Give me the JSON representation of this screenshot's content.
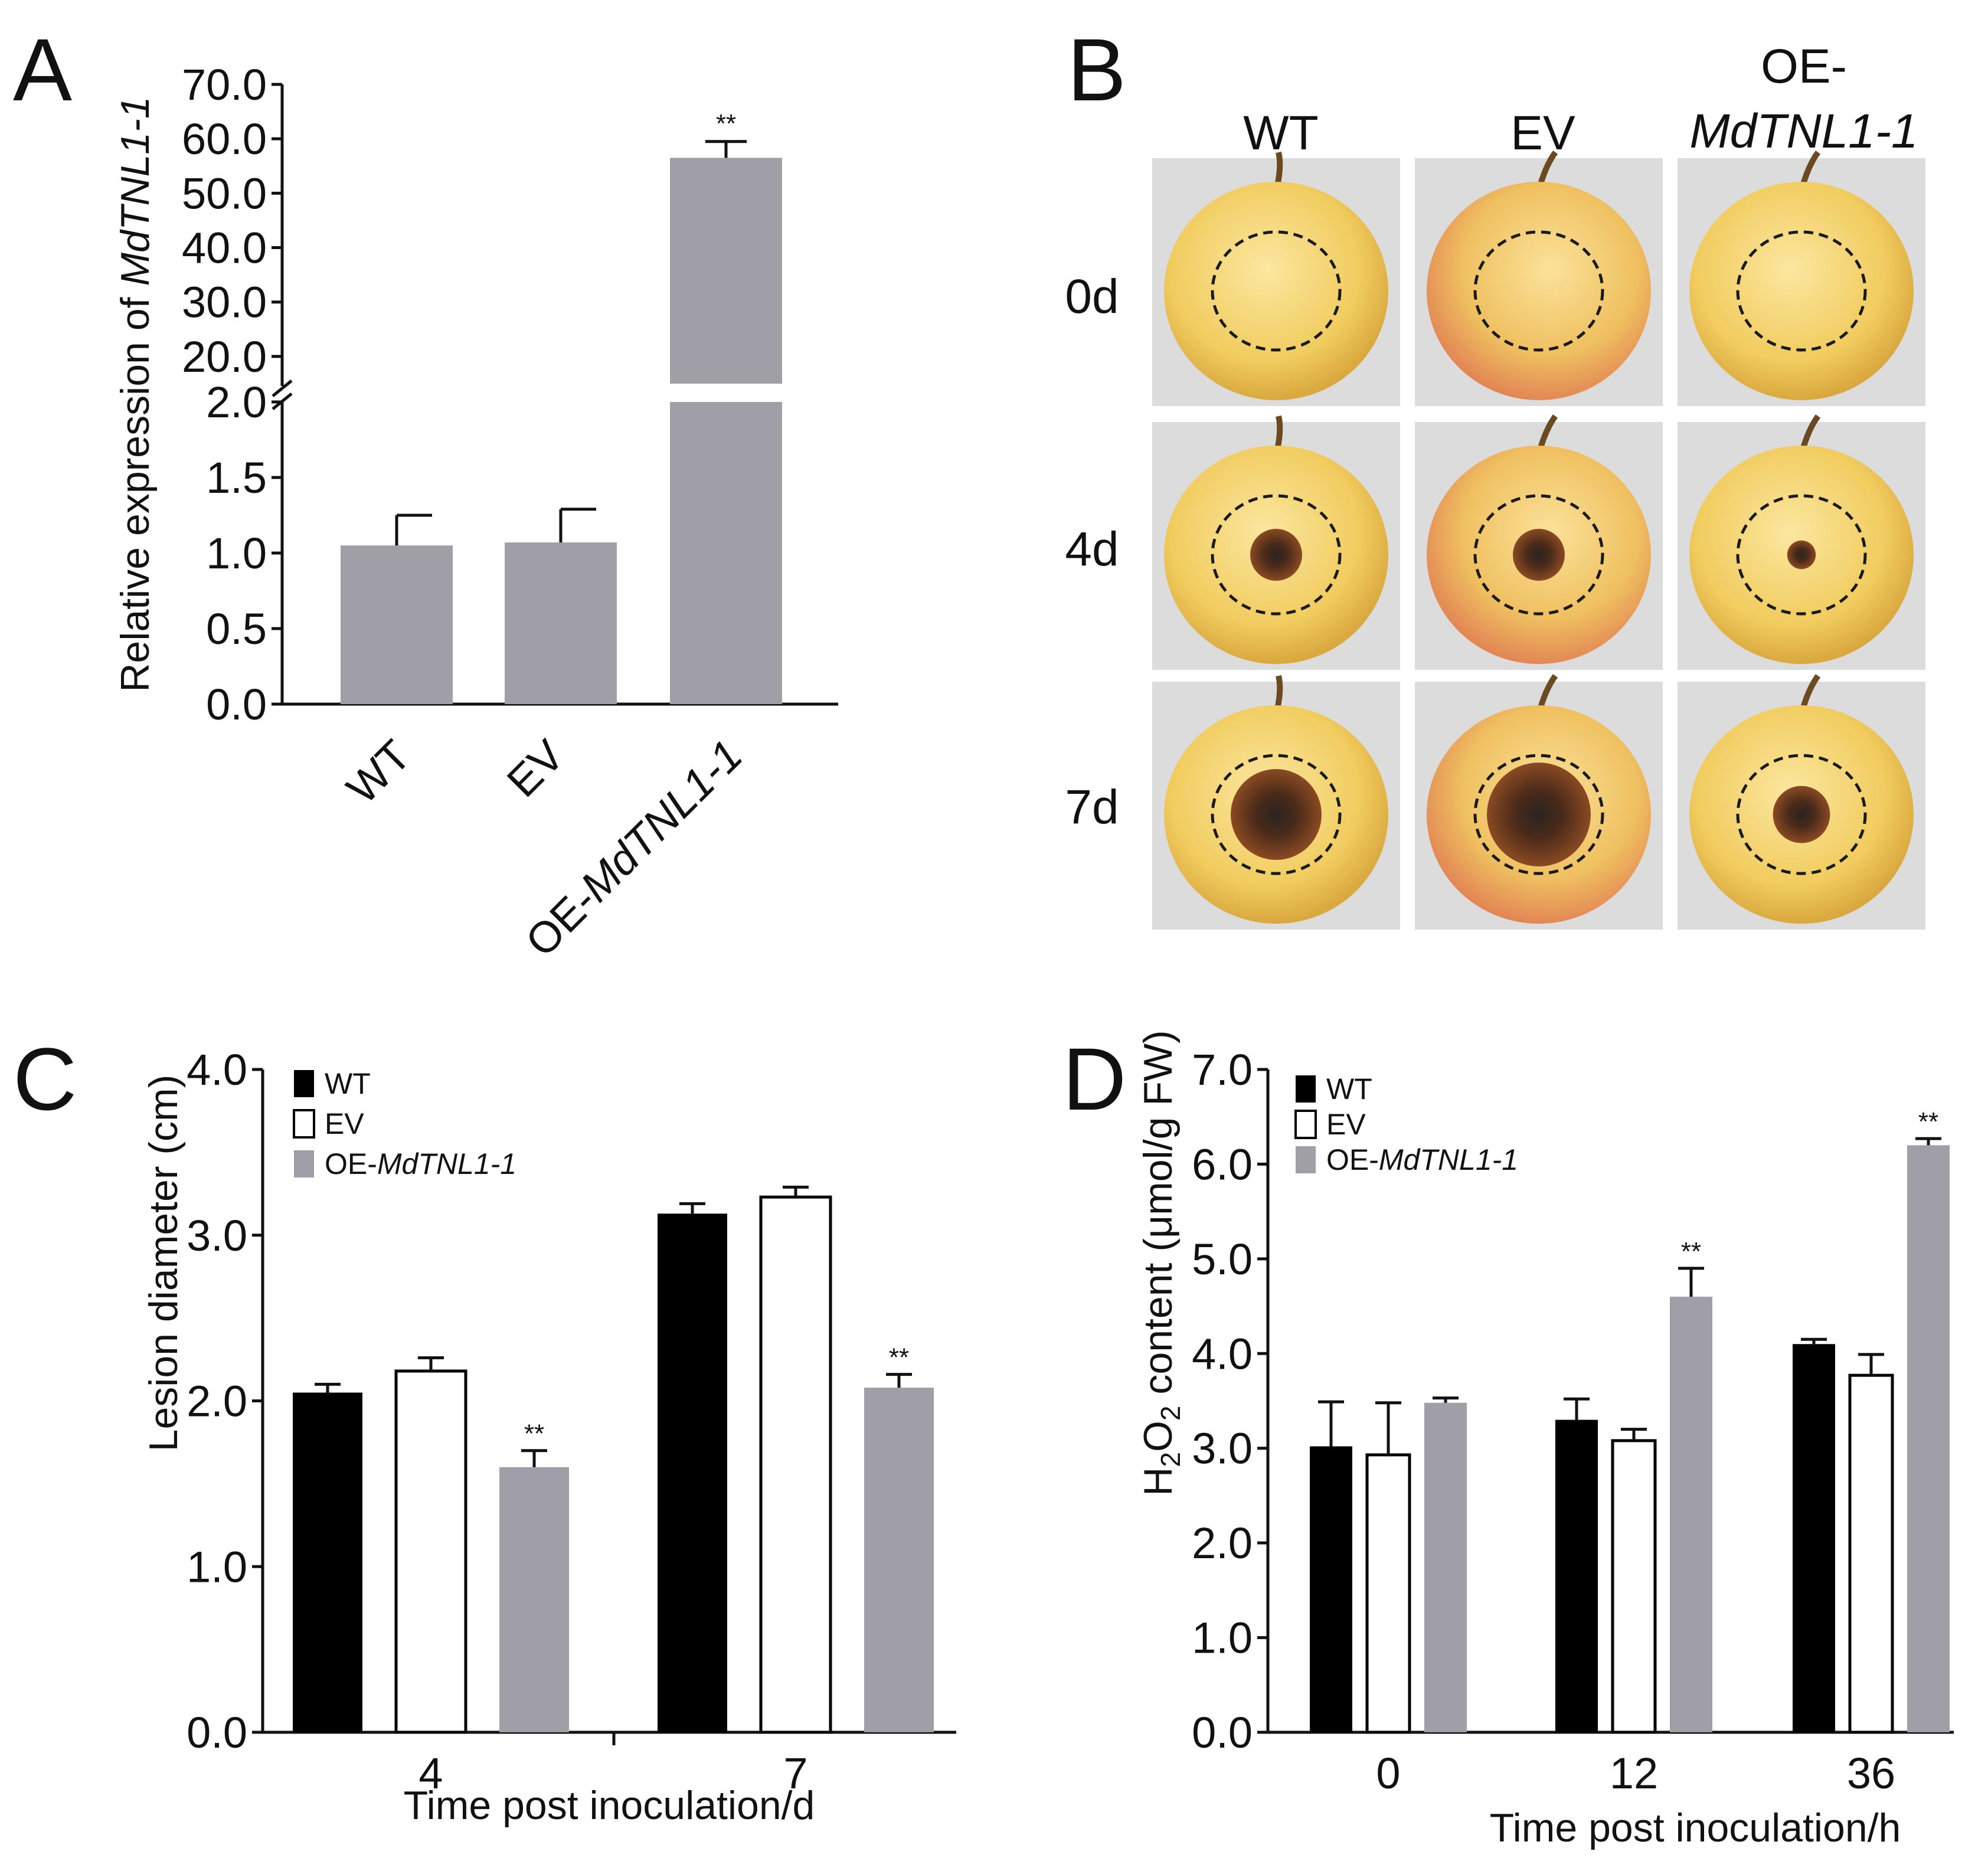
{
  "panel_labels": [
    "A",
    "B",
    "C",
    "D"
  ],
  "colors": {
    "wt": "#000000",
    "ev": "#ffffff",
    "oe": "#a09ea6",
    "axis": "#111111",
    "apple": "#f2cf67",
    "lesion": "#6e3a1e"
  },
  "chart_data": [
    {
      "id": "A",
      "type": "bar",
      "title": "",
      "xlabel": "",
      "ylabel_prefix": "Relative expression of ",
      "ylabel_gene": "MdTNL1-1",
      "categories": [
        "WT",
        "EV",
        "OE-MdTNL1-1"
      ],
      "category_labels": [
        {
          "prefix": "WT",
          "gene": ""
        },
        {
          "prefix": "EV",
          "gene": ""
        },
        {
          "prefix": "OE-",
          "gene": "MdTNL1-1"
        }
      ],
      "values": [
        1.05,
        1.07,
        56.5
      ],
      "errors": [
        0.2,
        0.22,
        3.0
      ],
      "significance": [
        "",
        "",
        "**"
      ],
      "axis_break": true,
      "ylim_lower": [
        0.0,
        2.0
      ],
      "ylim_upper": [
        15.0,
        70.0
      ],
      "yticks_lower": [
        "0.0",
        "0.5",
        "1.0",
        "1.5",
        "2.0"
      ],
      "yticks_upper": [
        "20.0",
        "30.0",
        "40.0",
        "50.0",
        "60.0",
        "70.0"
      ]
    },
    {
      "id": "C",
      "type": "bar",
      "title": "",
      "xlabel": "Time post inoculation/d",
      "ylabel": "Lesion diameter  (cm)",
      "categories": [
        "4",
        "7"
      ],
      "series": [
        {
          "name": "WT",
          "values": [
            2.05,
            3.13
          ],
          "errors": [
            0.05,
            0.06
          ],
          "significance": [
            "",
            ""
          ]
        },
        {
          "name": "EV",
          "values": [
            2.18,
            3.23
          ],
          "errors": [
            0.08,
            0.06
          ],
          "significance": [
            "",
            ""
          ]
        },
        {
          "name": "OE-MdTNL1-1",
          "values": [
            1.6,
            2.08
          ],
          "errors": [
            0.1,
            0.08
          ],
          "significance": [
            "**",
            "**"
          ]
        }
      ],
      "ylim": [
        0.0,
        4.0
      ],
      "yticks": [
        "0.0",
        "1.0",
        "2.0",
        "3.0",
        "4.0"
      ],
      "legend_labels": [
        {
          "prefix": "WT",
          "gene": ""
        },
        {
          "prefix": "EV",
          "gene": ""
        },
        {
          "prefix": "OE-",
          "gene": "MdTNL1-1"
        }
      ],
      "legend_position": "top-left"
    },
    {
      "id": "D",
      "type": "bar",
      "title": "",
      "xlabel": "Time post inoculation/h",
      "ylabel": "H2O2 content (μmol/g FW)",
      "ylabel_parts": [
        "H",
        "2",
        "O",
        "2",
        " content (μmol/g FW)"
      ],
      "categories": [
        "0",
        "12",
        "36"
      ],
      "series": [
        {
          "name": "WT",
          "values": [
            3.02,
            3.3,
            4.1
          ],
          "errors": [
            0.47,
            0.22,
            0.05
          ],
          "significance": [
            "",
            "",
            ""
          ]
        },
        {
          "name": "EV",
          "values": [
            2.93,
            3.08,
            3.77
          ],
          "errors": [
            0.55,
            0.12,
            0.22
          ],
          "significance": [
            "",
            "",
            ""
          ]
        },
        {
          "name": "OE-MdTNL1-1",
          "values": [
            3.48,
            4.6,
            6.2
          ],
          "errors": [
            0.05,
            0.3,
            0.07
          ],
          "significance": [
            "",
            "**",
            "**"
          ]
        }
      ],
      "ylim": [
        0.0,
        7.0
      ],
      "yticks": [
        "0.0",
        "1.0",
        "2.0",
        "3.0",
        "4.0",
        "5.0",
        "6.0",
        "7.0"
      ],
      "legend_labels": [
        {
          "prefix": "WT",
          "gene": ""
        },
        {
          "prefix": "EV",
          "gene": ""
        },
        {
          "prefix": "OE-",
          "gene": "MdTNL1-1"
        }
      ],
      "legend_position": "top-left"
    }
  ],
  "photo_panel": {
    "columns": [
      "WT",
      "EV"
    ],
    "column_oe_prefix": "OE-",
    "column_oe_gene": "MdTNL1-1",
    "rows": [
      "0d",
      "4d",
      "7d"
    ],
    "lesion_size_pct_of_circle": [
      [
        0,
        0,
        0
      ],
      [
        40,
        40,
        22
      ],
      [
        70,
        80,
        44
      ]
    ]
  }
}
